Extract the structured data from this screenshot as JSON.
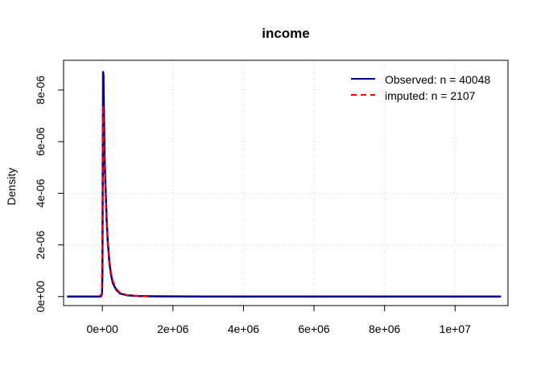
{
  "chart_data": {
    "type": "line",
    "title": "income",
    "xlabel": "",
    "ylabel": "Density",
    "xlim": [
      -1100000,
      11500000
    ],
    "ylim": [
      -3.5e-07,
      9.15e-06
    ],
    "x_ticks": [
      {
        "value": 0,
        "label": "0e+00"
      },
      {
        "value": 2000000,
        "label": "2e+06"
      },
      {
        "value": 4000000,
        "label": "4e+06"
      },
      {
        "value": 6000000,
        "label": "6e+06"
      },
      {
        "value": 8000000,
        "label": "8e+06"
      },
      {
        "value": 10000000,
        "label": "1e+07"
      }
    ],
    "y_ticks": [
      {
        "value": 0,
        "label": "0e+00"
      },
      {
        "value": 2e-06,
        "label": "2e-06"
      },
      {
        "value": 4e-06,
        "label": "4e-06"
      },
      {
        "value": 6e-06,
        "label": "6e-06"
      },
      {
        "value": 8e-06,
        "label": "8e-06"
      }
    ],
    "grid": true,
    "legend_position": "top-right",
    "series": [
      {
        "name": "Observed: n = 40048",
        "color": "#00008B",
        "style": "solid",
        "x": [
          -1000000,
          -200000,
          -50000,
          -10000,
          0,
          20000,
          30000,
          40000,
          50000,
          60000,
          80000,
          100000,
          120000,
          150000,
          200000,
          250000,
          300000,
          400000,
          500000,
          700000,
          1000000,
          1500000,
          3000000,
          6000000,
          9000000,
          11300000
        ],
        "y": [
          0,
          0,
          0,
          1e-07,
          8e-07,
          8.7e-06,
          8.6e-06,
          7.5e-06,
          6.6e-06,
          5.5e-06,
          4.6e-06,
          3.8e-06,
          3e-06,
          2.2e-06,
          1.3e-06,
          8e-07,
          5e-07,
          2.5e-07,
          1.2e-07,
          5e-08,
          2e-08,
          1e-08,
          0,
          0,
          0,
          0
        ]
      },
      {
        "name": "imputed: n = 2107",
        "color": "#FF0000",
        "style": "dashed",
        "x": [
          -100000,
          -20000,
          0,
          20000,
          40000,
          60000,
          80000,
          100000,
          120000,
          150000,
          200000,
          250000,
          300000,
          400000,
          500000,
          700000,
          1000000,
          1300000
        ],
        "y": [
          0,
          1e-07,
          2e-06,
          7.4e-06,
          6.2e-06,
          5.1e-06,
          4.4e-06,
          3.7e-06,
          3e-06,
          2.3e-06,
          1.4e-06,
          9e-07,
          6e-07,
          3e-07,
          1.5e-07,
          6e-08,
          2e-08,
          0
        ]
      }
    ]
  }
}
